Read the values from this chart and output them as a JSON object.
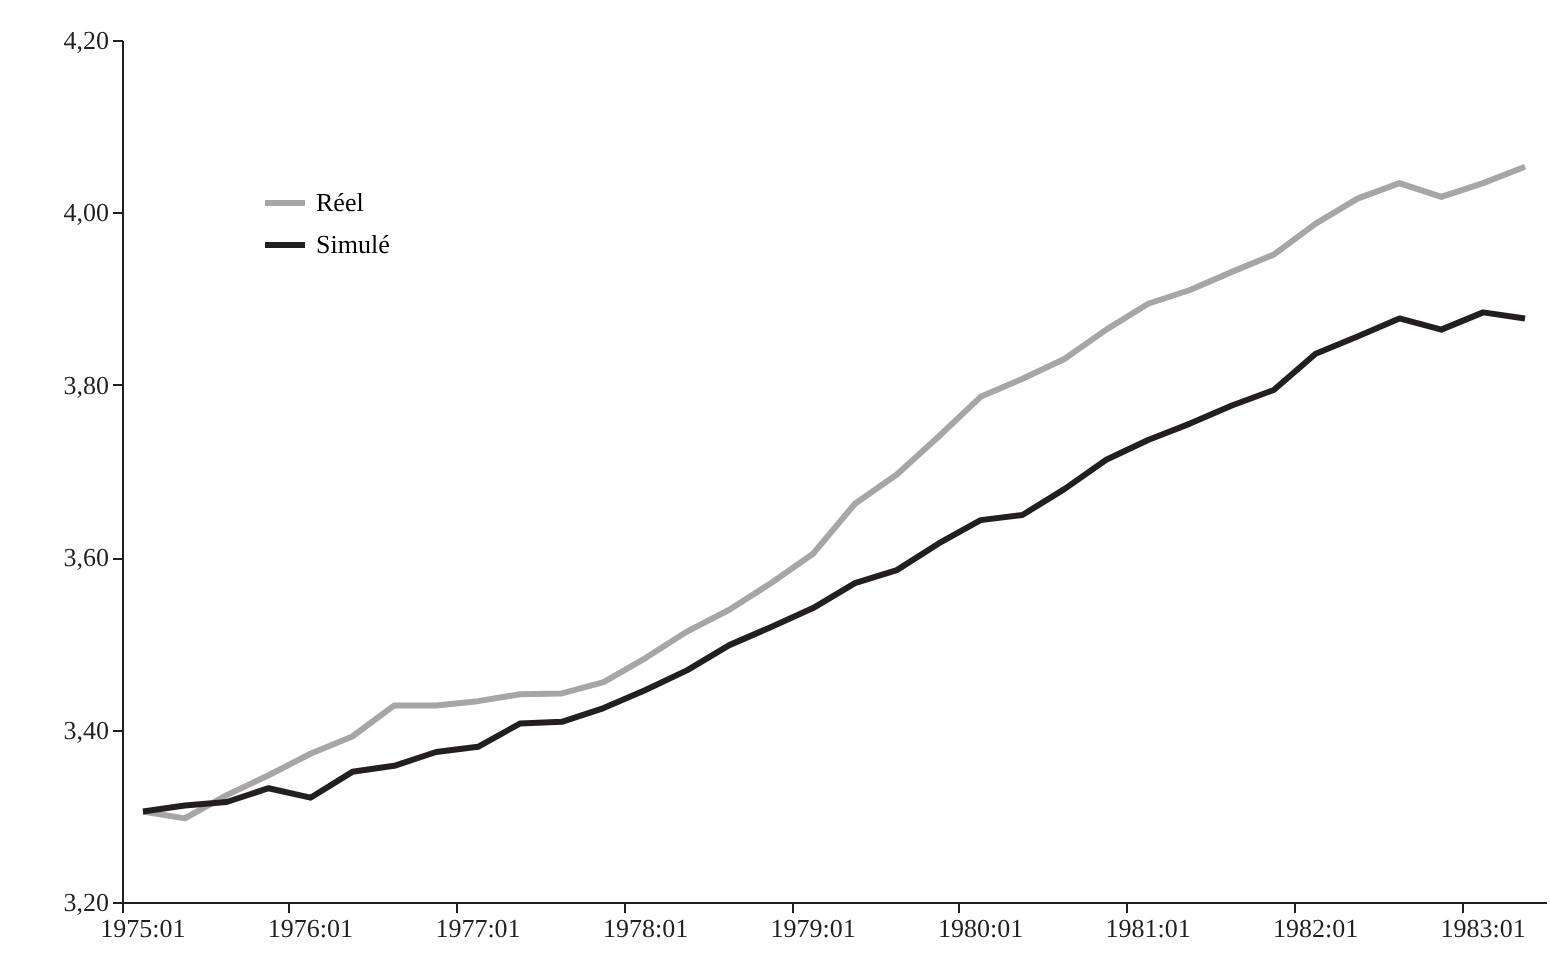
{
  "chart_data": {
    "type": "line",
    "categories": [
      "1975:01",
      null,
      null,
      null,
      "1976:01",
      null,
      null,
      null,
      "1977:01",
      null,
      null,
      null,
      "1978:01",
      null,
      null,
      null,
      "1979:01",
      null,
      null,
      null,
      "1980:01",
      null,
      null,
      null,
      "1981:01",
      null,
      null,
      null,
      "1982:01",
      null,
      null,
      null,
      "1983:01",
      null
    ],
    "series": [
      {
        "name": "Réel",
        "color": "#a6a6a6",
        "values": [
          3.305,
          3.297,
          3.324,
          3.347,
          3.372,
          3.392,
          3.428,
          3.428,
          3.433,
          3.441,
          3.442,
          3.455,
          3.483,
          3.514,
          3.539,
          3.57,
          3.604,
          3.662,
          3.696,
          3.74,
          3.786,
          3.807,
          3.83,
          3.864,
          3.894,
          3.91,
          3.931,
          3.951,
          3.987,
          4.016,
          4.034,
          4.018,
          4.034,
          4.053
        ]
      },
      {
        "name": "Simulé",
        "color": "#231f20",
        "values": [
          3.305,
          3.312,
          3.316,
          3.332,
          3.321,
          3.351,
          3.358,
          3.374,
          3.38,
          3.407,
          3.409,
          3.425,
          3.446,
          3.469,
          3.498,
          3.519,
          3.541,
          3.57,
          3.585,
          3.616,
          3.643,
          3.649,
          3.679,
          3.713,
          3.736,
          3.755,
          3.776,
          3.794,
          3.836,
          3.856,
          3.877,
          3.864,
          3.884,
          3.877
        ]
      }
    ],
    "ylim": [
      3.2,
      4.2
    ],
    "yticks": [
      {
        "value": 3.2,
        "label": "3,20"
      },
      {
        "value": 3.4,
        "label": "3,40"
      },
      {
        "value": 3.6,
        "label": "3,60"
      },
      {
        "value": 3.8,
        "label": "3,80"
      },
      {
        "value": 4.0,
        "label": "4,00"
      },
      {
        "value": 4.2,
        "label": "4,20"
      }
    ],
    "grid": false,
    "legend": "top left",
    "marker": "none",
    "line_style": "solid"
  }
}
